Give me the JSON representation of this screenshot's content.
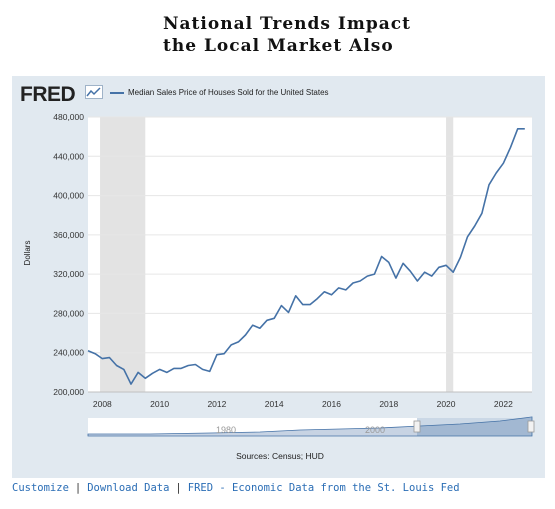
{
  "heading": {
    "line1": "National Trends Impact",
    "line2": "the Local Market Also"
  },
  "logo_text": "FRED",
  "logo_icon": "fred-chart-icon",
  "footer": {
    "links": [
      "Customize",
      "Download Data",
      "FRED - Economic Data from the St. Louis Fed"
    ],
    "separator": "|"
  },
  "chart_data": {
    "type": "line",
    "title": "",
    "xlabel": "",
    "ylabel": "Dollars",
    "ylim": [
      200000,
      480000
    ],
    "yticks": [
      200000,
      240000,
      280000,
      320000,
      360000,
      400000,
      440000,
      480000
    ],
    "ytick_labels": [
      "200,000",
      "240,000",
      "280,000",
      "320,000",
      "360,000",
      "400,000",
      "440,000",
      "480,000"
    ],
    "xlim": [
      2007.5,
      2023.0
    ],
    "xticks": [
      2008,
      2010,
      2012,
      2014,
      2016,
      2018,
      2020,
      2022
    ],
    "xtick_labels": [
      "2008",
      "2010",
      "2012",
      "2014",
      "2016",
      "2018",
      "2020",
      "2022"
    ],
    "legend": "top-left",
    "grid": true,
    "source": "Sources: Census; HUD",
    "recessions": [
      [
        2007.92,
        2009.5
      ],
      [
        2020.0,
        2020.25
      ]
    ],
    "navigator_labels": [
      "1980",
      "2000"
    ],
    "series": [
      {
        "name": "Median Sales Price of Houses Sold for the United States",
        "color": "#4572a7",
        "x": [
          2007.5,
          2007.75,
          2008.0,
          2008.25,
          2008.5,
          2008.75,
          2009.0,
          2009.25,
          2009.5,
          2009.75,
          2010.0,
          2010.25,
          2010.5,
          2010.75,
          2011.0,
          2011.25,
          2011.5,
          2011.75,
          2012.0,
          2012.25,
          2012.5,
          2012.75,
          2013.0,
          2013.25,
          2013.5,
          2013.75,
          2014.0,
          2014.25,
          2014.5,
          2014.75,
          2015.0,
          2015.25,
          2015.5,
          2015.75,
          2016.0,
          2016.25,
          2016.5,
          2016.75,
          2017.0,
          2017.25,
          2017.5,
          2017.75,
          2018.0,
          2018.25,
          2018.5,
          2018.75,
          2019.0,
          2019.25,
          2019.5,
          2019.75,
          2020.0,
          2020.25,
          2020.5,
          2020.75,
          2021.0,
          2021.25,
          2021.5,
          2021.75,
          2022.0,
          2022.25,
          2022.5,
          2022.75
        ],
        "values": [
          242000,
          239000,
          234000,
          235000,
          227000,
          223000,
          208000,
          220000,
          214000,
          219000,
          223000,
          220000,
          224000,
          224000,
          227000,
          228000,
          223000,
          221000,
          238000,
          239000,
          248000,
          251000,
          258000,
          268000,
          265000,
          273000,
          275000,
          288000,
          281000,
          298000,
          289000,
          289000,
          295000,
          302000,
          299000,
          306000,
          304000,
          311000,
          313000,
          318000,
          320000,
          338000,
          332000,
          316000,
          331000,
          323000,
          313000,
          322000,
          318000,
          327000,
          329000,
          322000,
          337000,
          358000,
          369000,
          382000,
          411000,
          423000,
          433000,
          449000,
          468000,
          468000
        ]
      }
    ]
  }
}
